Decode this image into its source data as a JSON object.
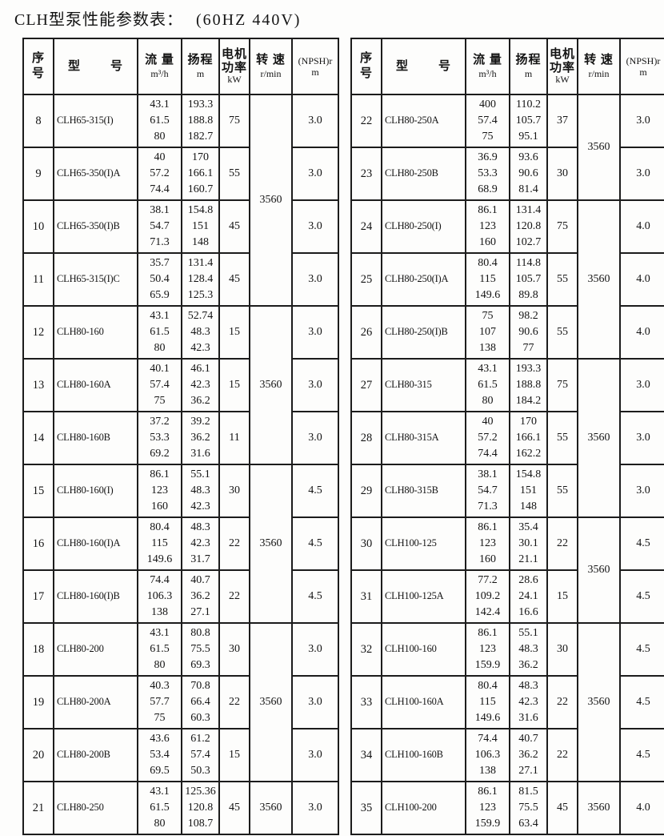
{
  "title": "CLH型泵性能参数表：",
  "subtitle": "(60HZ 440V)",
  "columns": [
    {
      "id": "index",
      "lines": [
        "序",
        "号"
      ]
    },
    {
      "id": "model",
      "lines": [
        "型",
        "号"
      ]
    },
    {
      "id": "flow",
      "lines": [
        "流 量",
        "m³/h"
      ]
    },
    {
      "id": "head",
      "lines": [
        "扬程",
        "m"
      ]
    },
    {
      "id": "power",
      "lines": [
        "电机",
        "功率",
        "kW"
      ]
    },
    {
      "id": "speed",
      "lines": [
        "转 速",
        "r/min"
      ]
    },
    {
      "id": "npsh",
      "lines": [
        "(NPSH)r",
        "m"
      ]
    }
  ],
  "left_table": {
    "rows": [
      {
        "no": "8",
        "model": "CLH65-315(I)",
        "flow": [
          "43.1",
          "61.5",
          "80"
        ],
        "head": [
          "193.3",
          "188.8",
          "182.7"
        ],
        "power": "75",
        "npsh": "3.0"
      },
      {
        "no": "9",
        "model": "CLH65-350(I)A",
        "flow": [
          "40",
          "57.2",
          "74.4"
        ],
        "head": [
          "170",
          "166.1",
          "160.7"
        ],
        "power": "55",
        "npsh": "3.0"
      },
      {
        "no": "10",
        "model": "CLH65-350(I)B",
        "flow": [
          "38.1",
          "54.7",
          "71.3"
        ],
        "head": [
          "154.8",
          "151",
          "148"
        ],
        "power": "45",
        "npsh": "3.0"
      },
      {
        "no": "11",
        "model": "CLH65-315(I)C",
        "flow": [
          "35.7",
          "50.4",
          "65.9"
        ],
        "head": [
          "131.4",
          "128.4",
          "125.3"
        ],
        "power": "45",
        "npsh": "3.0"
      },
      {
        "no": "12",
        "model": "CLH80-160",
        "flow": [
          "43.1",
          "61.5",
          "80"
        ],
        "head": [
          "52.74",
          "48.3",
          "42.3"
        ],
        "power": "15",
        "npsh": "3.0"
      },
      {
        "no": "13",
        "model": "CLH80-160A",
        "flow": [
          "40.1",
          "57.4",
          "75"
        ],
        "head": [
          "46.1",
          "42.3",
          "36.2"
        ],
        "power": "15",
        "npsh": "3.0"
      },
      {
        "no": "14",
        "model": "CLH80-160B",
        "flow": [
          "37.2",
          "53.3",
          "69.2"
        ],
        "head": [
          "39.2",
          "36.2",
          "31.6"
        ],
        "power": "11",
        "npsh": "3.0"
      },
      {
        "no": "15",
        "model": "CLH80-160(I)",
        "flow": [
          "86.1",
          "123",
          "160"
        ],
        "head": [
          "55.1",
          "48.3",
          "42.3"
        ],
        "power": "30",
        "npsh": "4.5"
      },
      {
        "no": "16",
        "model": "CLH80-160(I)A",
        "flow": [
          "80.4",
          "115",
          "149.6"
        ],
        "head": [
          "48.3",
          "42.3",
          "31.7"
        ],
        "power": "22",
        "npsh": "4.5"
      },
      {
        "no": "17",
        "model": "CLH80-160(I)B",
        "flow": [
          "74.4",
          "106.3",
          "138"
        ],
        "head": [
          "40.7",
          "36.2",
          "27.1"
        ],
        "power": "22",
        "npsh": "4.5"
      },
      {
        "no": "18",
        "model": "CLH80-200",
        "flow": [
          "43.1",
          "61.5",
          "80"
        ],
        "head": [
          "80.8",
          "75.5",
          "69.3"
        ],
        "power": "30",
        "npsh": "3.0"
      },
      {
        "no": "19",
        "model": "CLH80-200A",
        "flow": [
          "40.3",
          "57.7",
          "75"
        ],
        "head": [
          "70.8",
          "66.4",
          "60.3"
        ],
        "power": "22",
        "npsh": "3.0"
      },
      {
        "no": "20",
        "model": "CLH80-200B",
        "flow": [
          "43.6",
          "53.4",
          "69.5"
        ],
        "head": [
          "61.2",
          "57.4",
          "50.3"
        ],
        "power": "15",
        "npsh": "3.0"
      },
      {
        "no": "21",
        "model": "CLH80-250",
        "flow": [
          "43.1",
          "61.5",
          "80"
        ],
        "head": [
          "125.36",
          "120.8",
          "108.7"
        ],
        "power": "45",
        "npsh": "3.0"
      }
    ],
    "speed_groups": [
      {
        "start": 0,
        "span": 4,
        "value": "3560"
      },
      {
        "start": 4,
        "span": 3,
        "value": "3560"
      },
      {
        "start": 7,
        "span": 3,
        "value": "3560"
      },
      {
        "start": 10,
        "span": 3,
        "value": "3560"
      },
      {
        "start": 13,
        "span": 1,
        "value": "3560"
      }
    ]
  },
  "right_table": {
    "rows": [
      {
        "no": "22",
        "model": "CLH80-250A",
        "flow": [
          "400",
          "57.4",
          "75"
        ],
        "head": [
          "110.2",
          "105.7",
          "95.1"
        ],
        "power": "37",
        "npsh": "3.0"
      },
      {
        "no": "23",
        "model": "CLH80-250B",
        "flow": [
          "36.9",
          "53.3",
          "68.9"
        ],
        "head": [
          "93.6",
          "90.6",
          "81.4"
        ],
        "power": "30",
        "npsh": "3.0"
      },
      {
        "no": "24",
        "model": "CLH80-250(I)",
        "flow": [
          "86.1",
          "123",
          "160"
        ],
        "head": [
          "131.4",
          "120.8",
          "102.7"
        ],
        "power": "75",
        "npsh": "4.0"
      },
      {
        "no": "25",
        "model": "CLH80-250(I)A",
        "flow": [
          "80.4",
          "115",
          "149.6"
        ],
        "head": [
          "114.8",
          "105.7",
          "89.8"
        ],
        "power": "55",
        "npsh": "4.0"
      },
      {
        "no": "26",
        "model": "CLH80-250(I)B",
        "flow": [
          "75",
          "107",
          "138"
        ],
        "head": [
          "98.2",
          "90.6",
          "77"
        ],
        "power": "55",
        "npsh": "4.0"
      },
      {
        "no": "27",
        "model": "CLH80-315",
        "flow": [
          "43.1",
          "61.5",
          "80"
        ],
        "head": [
          "193.3",
          "188.8",
          "184.2"
        ],
        "power": "75",
        "npsh": "3.0"
      },
      {
        "no": "28",
        "model": "CLH80-315A",
        "flow": [
          "40",
          "57.2",
          "74.4"
        ],
        "head": [
          "170",
          "166.1",
          "162.2"
        ],
        "power": "55",
        "npsh": "3.0"
      },
      {
        "no": "29",
        "model": "CLH80-315B",
        "flow": [
          "38.1",
          "54.7",
          "71.3"
        ],
        "head": [
          "154.8",
          "151",
          "148"
        ],
        "power": "55",
        "npsh": "3.0"
      },
      {
        "no": "30",
        "model": "CLH100-125",
        "flow": [
          "86.1",
          "123",
          "160"
        ],
        "head": [
          "35.4",
          "30.1",
          "21.1"
        ],
        "power": "22",
        "npsh": "4.5"
      },
      {
        "no": "31",
        "model": "CLH100-125A",
        "flow": [
          "77.2",
          "109.2",
          "142.4"
        ],
        "head": [
          "28.6",
          "24.1",
          "16.6"
        ],
        "power": "15",
        "npsh": "4.5"
      },
      {
        "no": "32",
        "model": "CLH100-160",
        "flow": [
          "86.1",
          "123",
          "159.9"
        ],
        "head": [
          "55.1",
          "48.3",
          "36.2"
        ],
        "power": "30",
        "npsh": "4.5"
      },
      {
        "no": "33",
        "model": "CLH100-160A",
        "flow": [
          "80.4",
          "115",
          "149.6"
        ],
        "head": [
          "48.3",
          "42.3",
          "31.6"
        ],
        "power": "22",
        "npsh": "4.5"
      },
      {
        "no": "34",
        "model": "CLH100-160B",
        "flow": [
          "74.4",
          "106.3",
          "138"
        ],
        "head": [
          "40.7",
          "36.2",
          "27.1"
        ],
        "power": "22",
        "npsh": "4.5"
      },
      {
        "no": "35",
        "model": "CLH100-200",
        "flow": [
          "86.1",
          "123",
          "159.9"
        ],
        "head": [
          "81.5",
          "75.5",
          "63.4"
        ],
        "power": "45",
        "npsh": "4.0"
      }
    ],
    "speed_groups": [
      {
        "start": 0,
        "span": 2,
        "value": "3560"
      },
      {
        "start": 2,
        "span": 3,
        "value": "3560"
      },
      {
        "start": 5,
        "span": 3,
        "value": "3560"
      },
      {
        "start": 8,
        "span": 2,
        "value": "3560"
      },
      {
        "start": 10,
        "span": 3,
        "value": "3560"
      },
      {
        "start": 13,
        "span": 1,
        "value": "3560"
      }
    ]
  }
}
